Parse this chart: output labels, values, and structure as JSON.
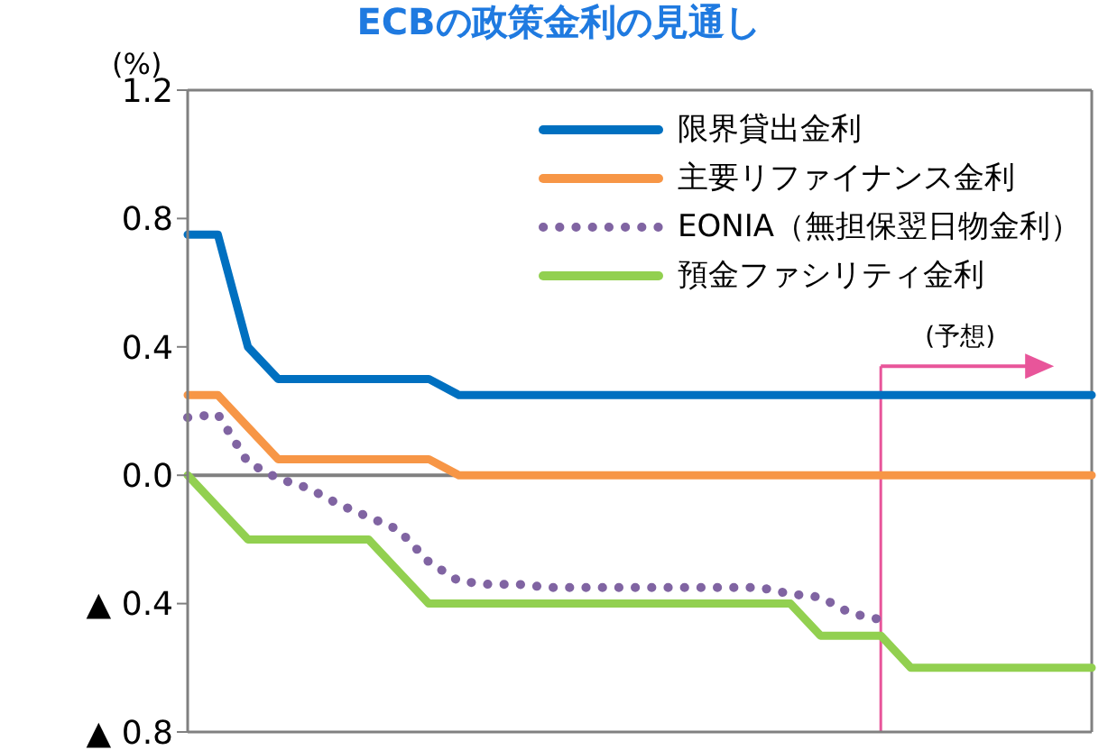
{
  "chart_data": {
    "type": "line",
    "title": "ECBの政策金利の見通し",
    "ylabel": "(%)",
    "categories": [
      null,
      null,
      null,
      null,
      null,
      null,
      null,
      null,
      null,
      null,
      null,
      null,
      null,
      null,
      null,
      null,
      null,
      null,
      null,
      null,
      null,
      null,
      null,
      null,
      null,
      null,
      null,
      null,
      null,
      null,
      null
    ],
    "series": [
      {
        "name": "限界貸出金利",
        "color": "#0070c0",
        "values": [
          0.75,
          0.75,
          0.4,
          0.3,
          0.3,
          0.3,
          0.3,
          0.3,
          0.3,
          0.25,
          0.25,
          0.25,
          0.25,
          0.25,
          0.25,
          0.25,
          0.25,
          0.25,
          0.25,
          0.25,
          0.25,
          0.25,
          0.25,
          0.25,
          0.25,
          0.25,
          0.25,
          0.25,
          0.25,
          0.25,
          0.25
        ]
      },
      {
        "name": "主要リファイナンス金利",
        "color": "#f79646",
        "values": [
          0.25,
          0.25,
          0.15,
          0.05,
          0.05,
          0.05,
          0.05,
          0.05,
          0.05,
          0,
          0,
          0,
          0,
          0,
          0,
          0,
          0,
          0,
          0,
          0,
          0,
          0,
          0,
          0,
          0,
          0,
          0,
          0,
          0,
          0,
          0
        ]
      },
      {
        "name": "EONIA（無担保翌日物金利）",
        "color": "#8064a2",
        "line_style": "dotted",
        "values": [
          0.18,
          0.19,
          0.04,
          -0.01,
          -0.04,
          -0.09,
          -0.13,
          -0.17,
          -0.27,
          -0.33,
          -0.34,
          -0.34,
          -0.35,
          -0.35,
          -0.35,
          -0.35,
          -0.35,
          -0.35,
          -0.35,
          -0.35,
          -0.37,
          -0.38,
          -0.43,
          -0.45,
          null,
          null,
          null,
          null,
          null,
          null,
          null
        ]
      },
      {
        "name": "預金ファシリティ金利",
        "color": "#92d050",
        "values": [
          0,
          -0.1,
          -0.2,
          -0.2,
          -0.2,
          -0.2,
          -0.2,
          -0.3,
          -0.4,
          -0.4,
          -0.4,
          -0.4,
          -0.4,
          -0.4,
          -0.4,
          -0.4,
          -0.4,
          -0.4,
          -0.4,
          -0.4,
          -0.4,
          -0.5,
          -0.5,
          -0.5,
          -0.6,
          -0.6,
          -0.6,
          -0.6,
          -0.6,
          -0.6,
          -0.6
        ]
      }
    ],
    "ylim": [
      -0.8,
      1.2
    ],
    "yticks": [
      {
        "value": -0.8,
        "label": "▲ 0.8"
      },
      {
        "value": -0.4,
        "label": "▲ 0.4"
      },
      {
        "value": 0,
        "label": "0.0"
      },
      0.4,
      0.8,
      1.2
    ],
    "ref_lines": [
      {
        "axis": "y",
        "value": 0,
        "color": "#808080"
      }
    ],
    "annotations": [
      "(予想)"
    ],
    "legend": "top right",
    "grid": false,
    "marker": "none",
    "tick_labels": "y",
    "line_style": "solid"
  }
}
